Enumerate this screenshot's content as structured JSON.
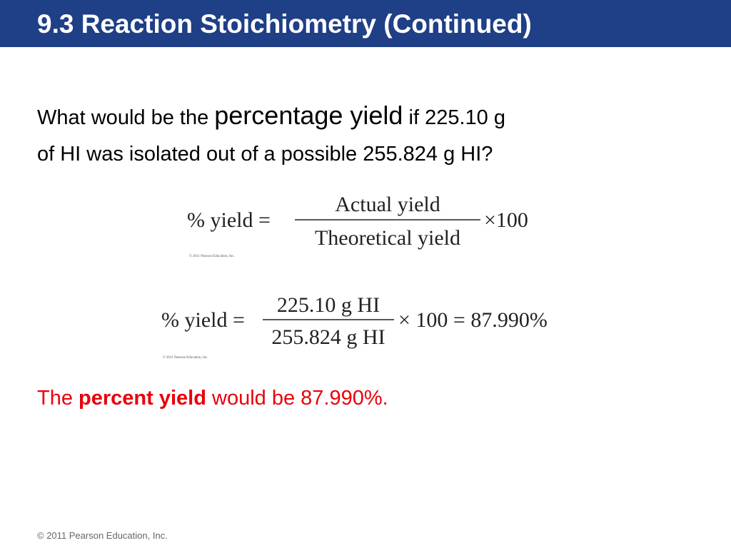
{
  "header": {
    "title": "9.3 Reaction Stoichiometry (Continued)"
  },
  "question": {
    "lead": "What would be the",
    "term": "percentage yield",
    "line1_rest": "if 225.10 g",
    "line2": "of HI was isolated out of a possible 255.824 g HI?"
  },
  "formula": {
    "lhs": "% yield =",
    "numerator": "Actual yield",
    "denominator": "Theoretical yield",
    "multiplier": "×100",
    "credit": "© 2011 Pearson Education, Inc."
  },
  "calculation": {
    "lhs": "% yield =",
    "numerator": "225.10 g HI",
    "denominator": "255.824 g HI",
    "rhs": "× 100 = 87.990%",
    "credit": "© 2011 Pearson Education, Inc."
  },
  "conclusion": {
    "lead": "The",
    "term": "percent yield",
    "rest": "would be 87.990%."
  },
  "footer": {
    "copyright": "© 2011 Pearson Education, Inc."
  }
}
